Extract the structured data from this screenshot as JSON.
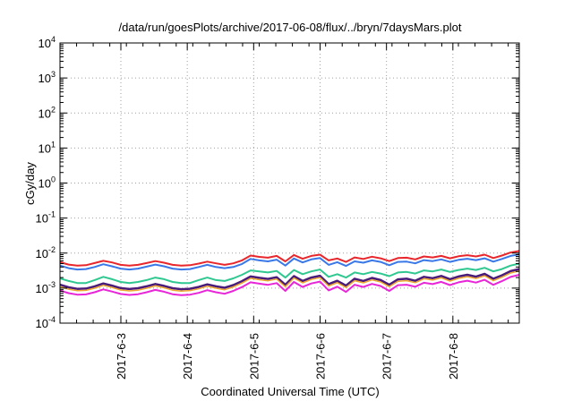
{
  "chart_data": {
    "type": "line",
    "title": "/data/run/goesPlots/archive/2017-06-08/flux/../bryn/7daysMars.plot",
    "xlabel": "Coordinated Universal Time (UTC)",
    "ylabel": "cGy/day",
    "yscale": "log",
    "ylim": [
      0.0001,
      10000
    ],
    "xlim": [
      "2017-06-02T02:00",
      "2017-06-09T00:00"
    ],
    "grid": true,
    "legend": "none",
    "y_ticks": [
      {
        "base": "10",
        "exp": "4"
      },
      {
        "base": "10",
        "exp": "3"
      },
      {
        "base": "10",
        "exp": "2"
      },
      {
        "base": "10",
        "exp": "1"
      },
      {
        "base": "10",
        "exp": "0"
      },
      {
        "base": "10",
        "exp": "-1"
      },
      {
        "base": "10",
        "exp": "-2"
      },
      {
        "base": "10",
        "exp": "-3"
      },
      {
        "base": "10",
        "exp": "-4"
      }
    ],
    "x_ticks": [
      "2017-6-3",
      "2017-6-4",
      "2017-6-5",
      "2017-6-6",
      "2017-6-7",
      "2017-6-8"
    ],
    "series": [
      {
        "color": "#e8262b",
        "width": 2,
        "values": [
          0.0055,
          0.0047,
          0.0044,
          0.0045,
          0.0052,
          0.006,
          0.0054,
          0.0046,
          0.0044,
          0.0046,
          0.0052,
          0.0059,
          0.0053,
          0.0046,
          0.0044,
          0.0045,
          0.005,
          0.0057,
          0.0051,
          0.0046,
          0.0051,
          0.0062,
          0.0085,
          0.0078,
          0.0074,
          0.0083,
          0.0058,
          0.0088,
          0.0069,
          0.0083,
          0.009,
          0.0062,
          0.007,
          0.0056,
          0.0075,
          0.0068,
          0.0079,
          0.0071,
          0.0059,
          0.0072,
          0.0074,
          0.0066,
          0.008,
          0.0075,
          0.0083,
          0.0071,
          0.0081,
          0.0087,
          0.008,
          0.009,
          0.0072,
          0.0085,
          0.0104,
          0.0115
        ]
      },
      {
        "color": "#3a78e8",
        "width": 2,
        "values": [
          0.0044,
          0.0037,
          0.0034,
          0.0035,
          0.004,
          0.0048,
          0.0042,
          0.0036,
          0.0034,
          0.0036,
          0.0041,
          0.0047,
          0.0042,
          0.0036,
          0.0034,
          0.0035,
          0.004,
          0.0046,
          0.004,
          0.0037,
          0.004,
          0.0049,
          0.0068,
          0.0062,
          0.0058,
          0.0065,
          0.0044,
          0.007,
          0.0054,
          0.0066,
          0.0072,
          0.0046,
          0.0055,
          0.0043,
          0.0058,
          0.0053,
          0.0062,
          0.0056,
          0.0045,
          0.0056,
          0.0057,
          0.0051,
          0.0063,
          0.0059,
          0.0066,
          0.0056,
          0.0064,
          0.0069,
          0.0063,
          0.0071,
          0.0057,
          0.0068,
          0.0083,
          0.0092
        ]
      },
      {
        "color": "#2fc890",
        "width": 2,
        "values": [
          0.0019,
          0.0016,
          0.0014,
          0.0014,
          0.0017,
          0.0021,
          0.0018,
          0.0015,
          0.0014,
          0.0015,
          0.0017,
          0.002,
          0.0018,
          0.0015,
          0.0014,
          0.0014,
          0.0017,
          0.002,
          0.0017,
          0.0016,
          0.0019,
          0.0024,
          0.0032,
          0.003,
          0.0028,
          0.0031,
          0.002,
          0.0033,
          0.0025,
          0.003,
          0.0034,
          0.0021,
          0.0025,
          0.002,
          0.0028,
          0.0025,
          0.0029,
          0.0026,
          0.0022,
          0.0028,
          0.0029,
          0.0026,
          0.0032,
          0.003,
          0.0034,
          0.0029,
          0.0033,
          0.0036,
          0.0033,
          0.0038,
          0.003,
          0.0035,
          0.0044,
          0.005
        ]
      },
      {
        "color": "#4a1c7a",
        "width": 2.5,
        "values": [
          0.00125,
          0.00105,
          0.00095,
          0.00097,
          0.00112,
          0.00136,
          0.00118,
          0.001,
          0.00094,
          0.00099,
          0.00112,
          0.00131,
          0.00116,
          0.00099,
          0.00093,
          0.00096,
          0.00108,
          0.00128,
          0.00112,
          0.00102,
          0.00122,
          0.00158,
          0.00215,
          0.00197,
          0.00183,
          0.00205,
          0.00125,
          0.0022,
          0.0016,
          0.002,
          0.00225,
          0.0013,
          0.00162,
          0.00118,
          0.00185,
          0.0016,
          0.00195,
          0.0017,
          0.00125,
          0.00178,
          0.00185,
          0.00162,
          0.0021,
          0.00192,
          0.00222,
          0.0018,
          0.00215,
          0.0024,
          0.00212,
          0.00255,
          0.00185,
          0.00232,
          0.00305,
          0.0035
        ]
      },
      {
        "color": "#f0a830",
        "width": 1.5,
        "values": [
          0.0011,
          0.00093,
          0.00084,
          0.00086,
          0.00099,
          0.0012,
          0.00104,
          0.00088,
          0.00083,
          0.00087,
          0.00099,
          0.00116,
          0.00102,
          0.00087,
          0.00082,
          0.00085,
          0.00095,
          0.00113,
          0.00099,
          0.0009,
          0.00108,
          0.0014,
          0.0019,
          0.00174,
          0.00162,
          0.00181,
          0.0011,
          0.00194,
          0.00141,
          0.00177,
          0.00199,
          0.00115,
          0.00143,
          0.00104,
          0.00163,
          0.00141,
          0.00172,
          0.0015,
          0.0011,
          0.00157,
          0.00163,
          0.00143,
          0.00185,
          0.0017,
          0.00196,
          0.00159,
          0.0019,
          0.00212,
          0.00187,
          0.00225,
          0.00163,
          0.00205,
          0.0027,
          0.0031
        ]
      },
      {
        "color": "#e826d8",
        "width": 2,
        "values": [
          0.00085,
          0.00072,
          0.00065,
          0.00066,
          0.00076,
          0.00092,
          0.0008,
          0.00068,
          0.00064,
          0.00067,
          0.00076,
          0.00089,
          0.00079,
          0.00067,
          0.00063,
          0.00065,
          0.00073,
          0.00087,
          0.00076,
          0.00069,
          0.00083,
          0.00107,
          0.00146,
          0.00134,
          0.00124,
          0.00139,
          0.00083,
          0.0015,
          0.00108,
          0.00136,
          0.00153,
          0.00086,
          0.0011,
          0.00078,
          0.00125,
          0.00108,
          0.00132,
          0.00115,
          0.00083,
          0.00121,
          0.00125,
          0.0011,
          0.00142,
          0.0013,
          0.00151,
          0.00122,
          0.00146,
          0.00163,
          0.00144,
          0.00173,
          0.00124,
          0.00158,
          0.00208,
          0.0024
        ]
      }
    ]
  }
}
